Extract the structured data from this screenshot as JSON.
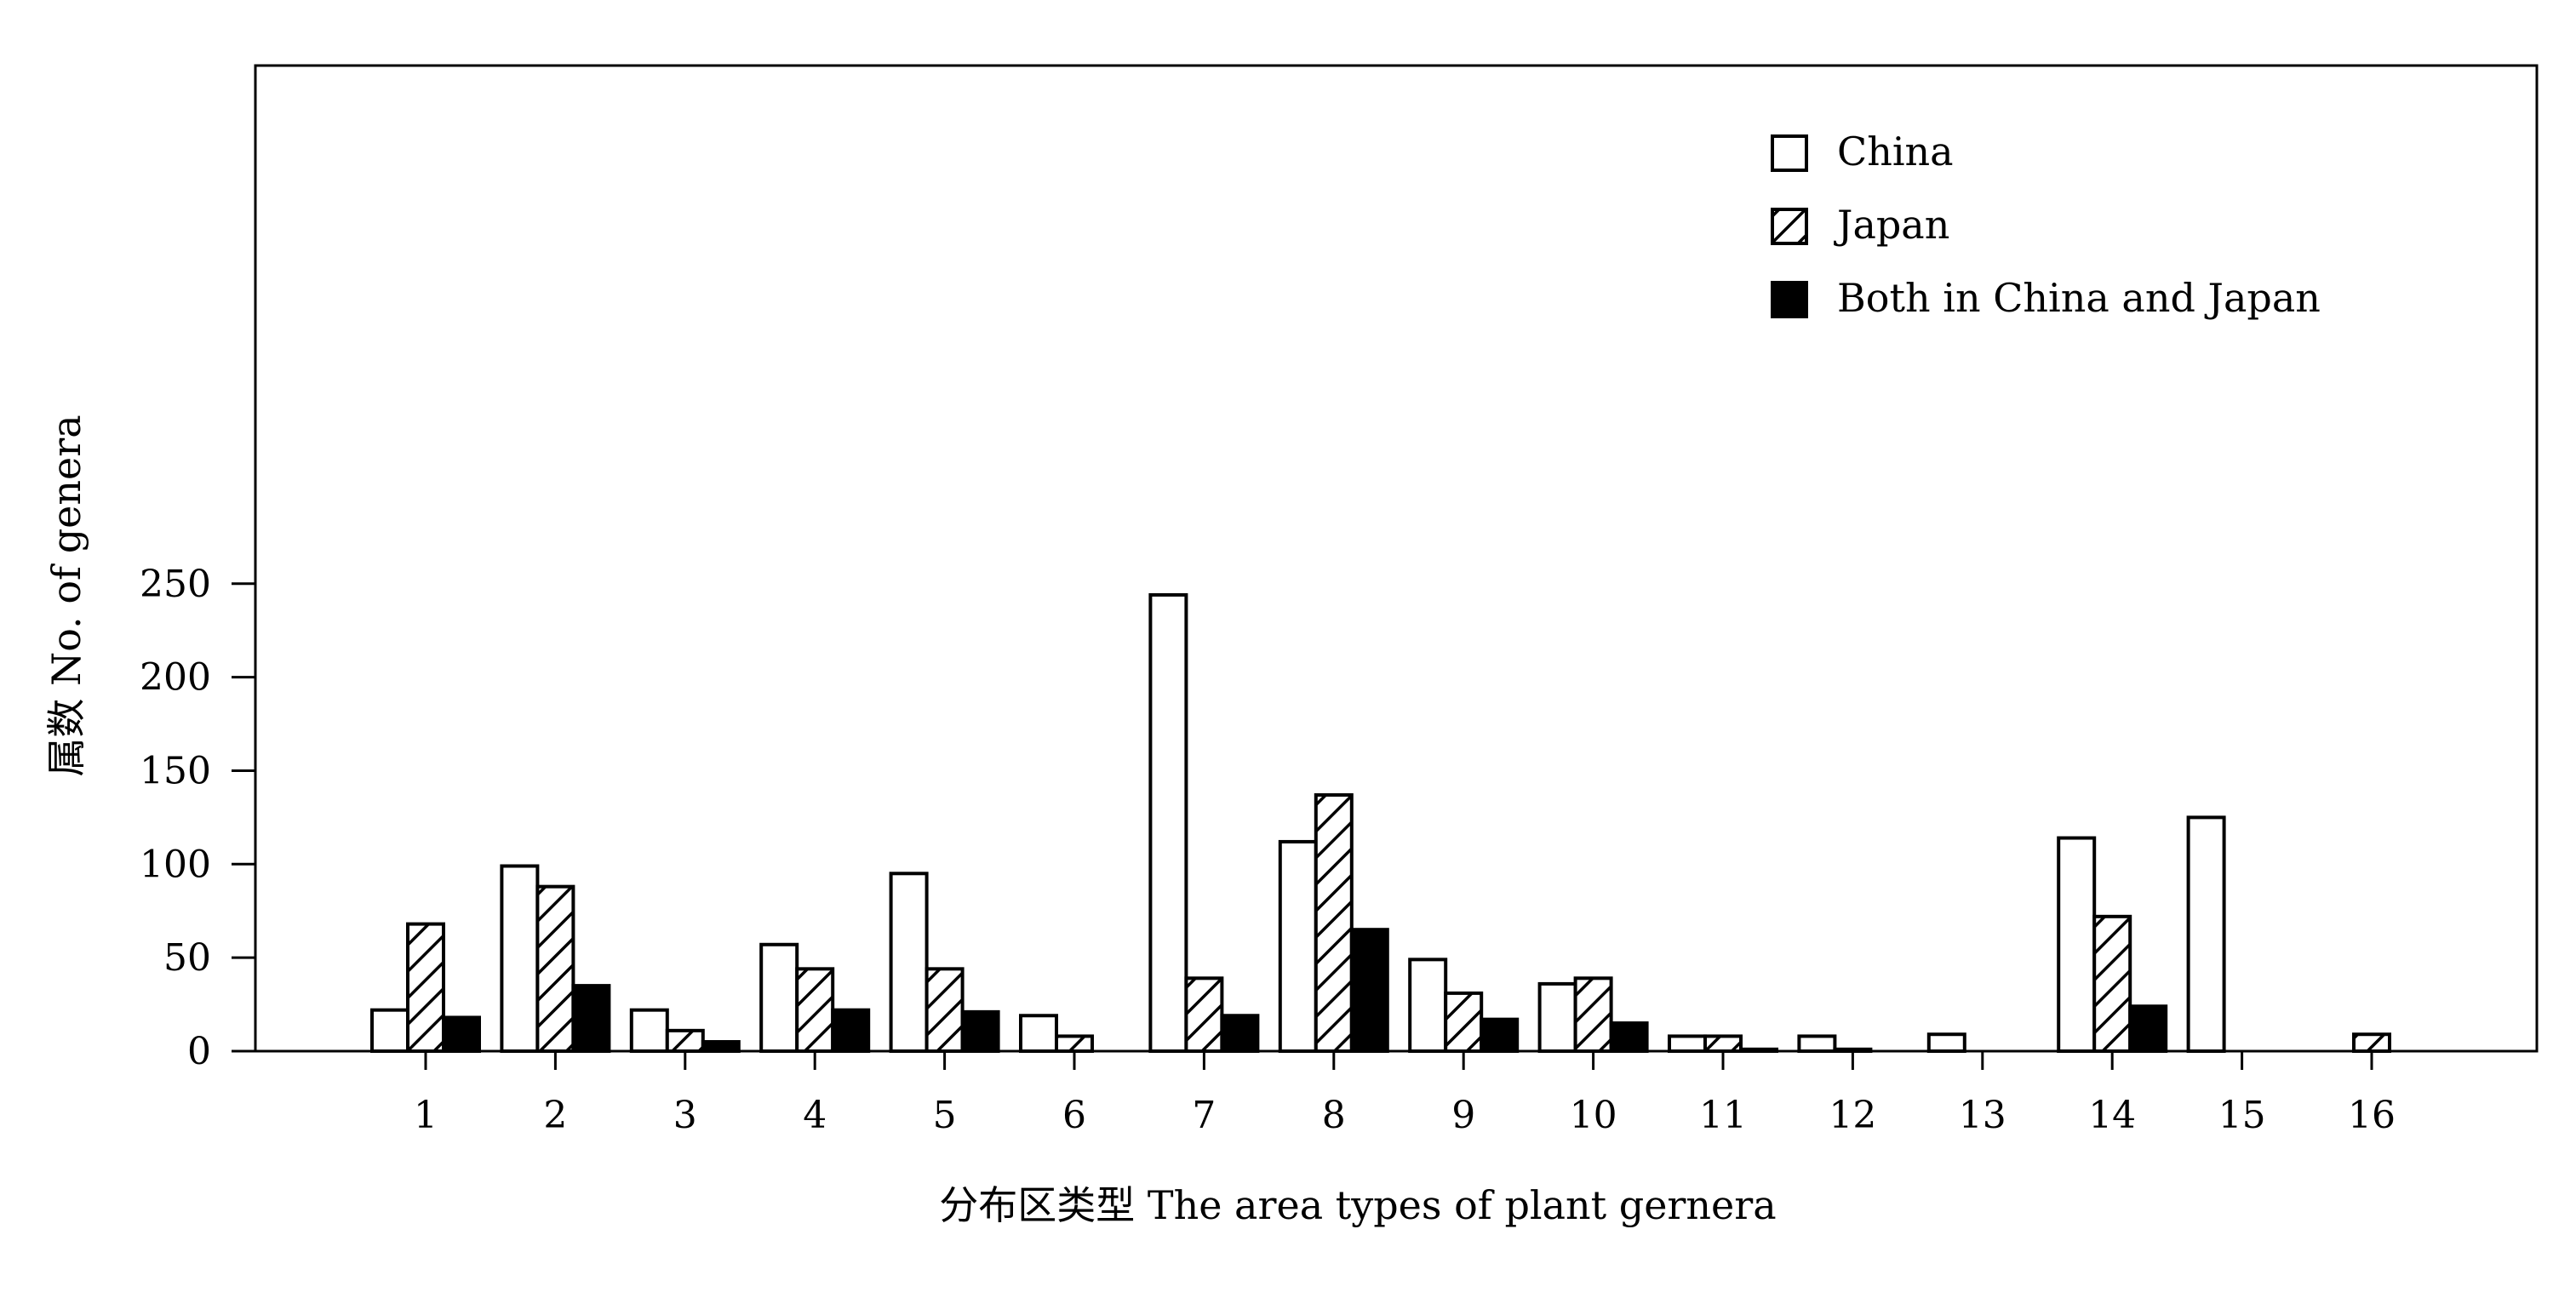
{
  "chart_data": {
    "type": "bar",
    "title": "",
    "xlabel": "分布区类型 The area types of plant gernera",
    "ylabel": "属数 No. of genera",
    "ylim": [
      0,
      262
    ],
    "yticks": [
      0,
      50,
      100,
      150,
      200,
      250
    ],
    "categories": [
      "1",
      "2",
      "3",
      "4",
      "5",
      "6",
      "7",
      "8",
      "9",
      "10",
      "11",
      "12",
      "13",
      "14",
      "15",
      "16"
    ],
    "series": [
      {
        "name": "China",
        "pattern": "white",
        "values": [
          22,
          99,
          22,
          57,
          95,
          19,
          244,
          112,
          49,
          36,
          8,
          8,
          9,
          114,
          125,
          0
        ]
      },
      {
        "name": "Japan",
        "pattern": "hatch",
        "values": [
          68,
          88,
          11,
          44,
          44,
          8,
          39,
          137,
          31,
          39,
          8,
          1,
          0,
          72,
          0,
          9
        ]
      },
      {
        "name": "Both in China and Japan",
        "pattern": "black",
        "values": [
          18,
          35,
          5,
          22,
          21,
          0,
          19,
          65,
          17,
          15,
          1,
          0,
          0,
          24,
          0,
          0
        ]
      }
    ],
    "legend_position": "top-right",
    "grid": false,
    "colors": {
      "stroke": "#000000",
      "fill_white": "#ffffff",
      "fill_black": "#000000"
    }
  }
}
